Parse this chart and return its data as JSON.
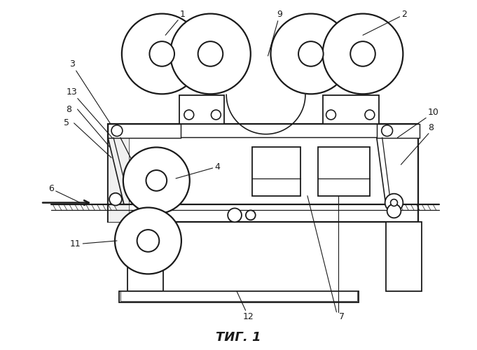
{
  "title": "ΤИГ. 1",
  "bg_color": "#ffffff",
  "line_color": "#1a1a1a",
  "fig_width": 6.81,
  "fig_height": 5.0,
  "dpi": 100
}
